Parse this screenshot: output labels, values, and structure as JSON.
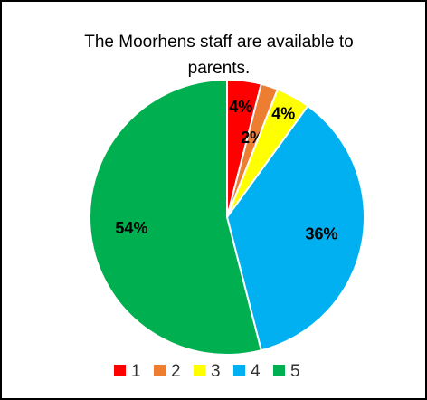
{
  "chart_data": {
    "type": "pie",
    "title": "The Moorhens staff are available to parents.",
    "categories": [
      "1",
      "2",
      "3",
      "4",
      "5"
    ],
    "values": [
      4,
      2,
      4,
      36,
      54
    ],
    "value_labels": [
      "4%",
      "2%",
      "4%",
      "36%",
      "54%"
    ],
    "colors": [
      "#ff0000",
      "#ed7d31",
      "#ffff00",
      "#00b0f0",
      "#00b050"
    ],
    "legend": "bottom"
  }
}
